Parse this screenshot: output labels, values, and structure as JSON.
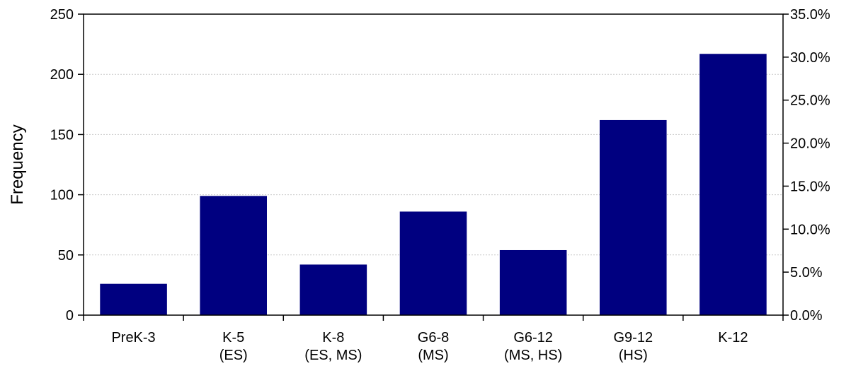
{
  "chart_data": {
    "type": "bar",
    "categories": [
      [
        "PreK-3"
      ],
      [
        "K-5",
        "(ES)"
      ],
      [
        "K-8",
        "(ES, MS)"
      ],
      [
        "G6-8",
        "(MS)"
      ],
      [
        "G6-12",
        "(MS, HS)"
      ],
      [
        "G9-12",
        "(HS)"
      ],
      [
        "K-12"
      ]
    ],
    "values": [
      26,
      99,
      42,
      86,
      54,
      162,
      217
    ],
    "ylabel": "Frequency",
    "ylim": [
      0,
      250
    ],
    "yticks": [
      "0",
      "50",
      "100",
      "150",
      "200",
      "250"
    ],
    "y2lim": [
      0,
      35
    ],
    "y2ticks": [
      "0.0%",
      "5.0%",
      "10.0%",
      "15.0%",
      "20.0%",
      "25.0%",
      "30.0%",
      "35.0%"
    ],
    "bar_color": "#000080",
    "grid": true,
    "legend": "none"
  }
}
